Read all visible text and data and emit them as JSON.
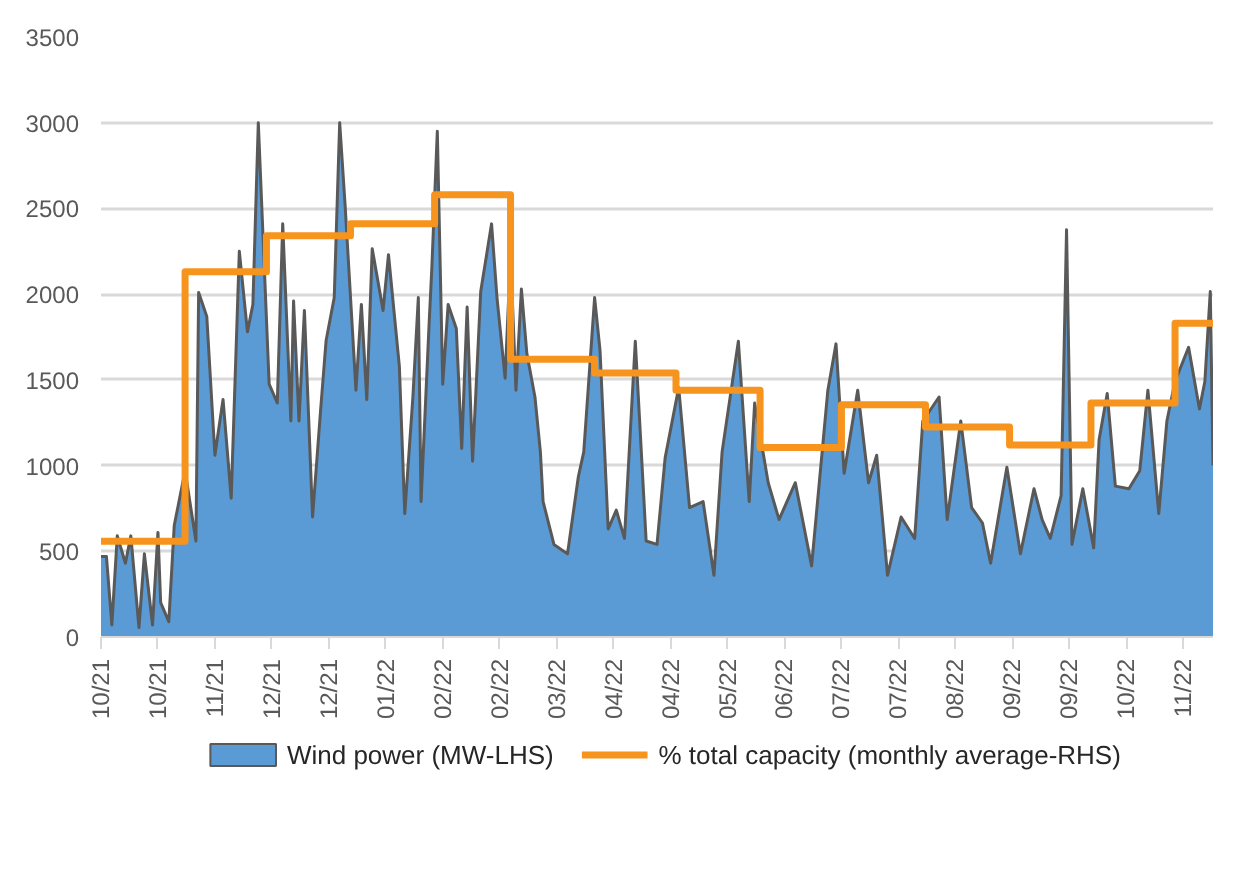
{
  "chart_data": {
    "type": "area",
    "ylim": [
      0,
      3500
    ],
    "yticks": [
      0,
      500,
      1000,
      1500,
      2000,
      2500,
      3000,
      3500
    ],
    "grid": "y",
    "legend": "bottom",
    "xlim": [
      "2021-10-01",
      "2022-11-15"
    ],
    "xticks": [
      {
        "value": "2021-10-01",
        "label": "10/21"
      },
      {
        "value": "2021-10-22",
        "label": "10/21"
      },
      {
        "value": "2021-11-12",
        "label": "11/21"
      },
      {
        "value": "2021-12-03",
        "label": "12/21"
      },
      {
        "value": "2021-12-24",
        "label": "12/21"
      },
      {
        "value": "2022-01-14",
        "label": "01/22"
      },
      {
        "value": "2022-02-04",
        "label": "02/22"
      },
      {
        "value": "2022-02-25",
        "label": "02/22"
      },
      {
        "value": "2022-03-18",
        "label": "03/22"
      },
      {
        "value": "2022-04-08",
        "label": "04/22"
      },
      {
        "value": "2022-04-29",
        "label": "04/22"
      },
      {
        "value": "2022-05-20",
        "label": "05/22"
      },
      {
        "value": "2022-06-10",
        "label": "06/22"
      },
      {
        "value": "2022-07-01",
        "label": "07/22"
      },
      {
        "value": "2022-07-22",
        "label": "07/22"
      },
      {
        "value": "2022-08-12",
        "label": "08/22"
      },
      {
        "value": "2022-09-02",
        "label": "09/22"
      },
      {
        "value": "2022-09-23",
        "label": "09/22"
      },
      {
        "value": "2022-10-14",
        "label": "10/22"
      },
      {
        "value": "2022-11-04",
        "label": "11/22"
      }
    ],
    "series": [
      {
        "name": "Wind power (MW-LHS)",
        "color": "#5b9bd5",
        "x": [
          "2021-10-01",
          "2021-10-03",
          "2021-10-05",
          "2021-10-07",
          "2021-10-10",
          "2021-10-12",
          "2021-10-15",
          "2021-10-17",
          "2021-10-20",
          "2021-10-22",
          "2021-10-23",
          "2021-10-26",
          "2021-10-28",
          "2021-11-01",
          "2021-11-05",
          "2021-11-06",
          "2021-11-09",
          "2021-11-12",
          "2021-11-15",
          "2021-11-18",
          "2021-11-21",
          "2021-11-24",
          "2021-11-26",
          "2021-11-28",
          "2021-12-02",
          "2021-12-05",
          "2021-12-07",
          "2021-12-10",
          "2021-12-11",
          "2021-12-13",
          "2021-12-15",
          "2021-12-18",
          "2021-12-21",
          "2021-12-23",
          "2021-12-26",
          "2021-12-28",
          "2021-12-30",
          "2022-01-03",
          "2022-01-05",
          "2022-01-07",
          "2022-01-09",
          "2022-01-13",
          "2022-01-15",
          "2022-01-19",
          "2022-01-21",
          "2022-01-24",
          "2022-01-26",
          "2022-01-27",
          "2022-01-30",
          "2022-01-31",
          "2022-02-02",
          "2022-02-04",
          "2022-02-06",
          "2022-02-09",
          "2022-02-11",
          "2022-02-13",
          "2022-02-15",
          "2022-02-18",
          "2022-02-22",
          "2022-02-24",
          "2022-02-27",
          "2022-03-01",
          "2022-03-03",
          "2022-03-05",
          "2022-03-07",
          "2022-03-10",
          "2022-03-12",
          "2022-03-13",
          "2022-03-17",
          "2022-03-22",
          "2022-03-26",
          "2022-03-28",
          "2022-04-01",
          "2022-04-03",
          "2022-04-06",
          "2022-04-09",
          "2022-04-12",
          "2022-04-16",
          "2022-04-20",
          "2022-04-24",
          "2022-04-27",
          "2022-05-02",
          "2022-05-06",
          "2022-05-11",
          "2022-05-15",
          "2022-05-18",
          "2022-05-24",
          "2022-05-28",
          "2022-05-30",
          "2022-06-04",
          "2022-06-08",
          "2022-06-14",
          "2022-06-20",
          "2022-06-26",
          "2022-06-29",
          "2022-07-02",
          "2022-07-07",
          "2022-07-11",
          "2022-07-14",
          "2022-07-18",
          "2022-07-23",
          "2022-07-28",
          "2022-07-31",
          "2022-08-06",
          "2022-08-09",
          "2022-08-14",
          "2022-08-18",
          "2022-08-22",
          "2022-08-25",
          "2022-08-31",
          "2022-09-05",
          "2022-09-10",
          "2022-09-13",
          "2022-09-16",
          "2022-09-20",
          "2022-09-22",
          "2022-09-24",
          "2022-09-28",
          "2022-10-02",
          "2022-10-04",
          "2022-10-07",
          "2022-10-10",
          "2022-10-15",
          "2022-10-19",
          "2022-10-22",
          "2022-10-26",
          "2022-10-29",
          "2022-11-01",
          "2022-11-06",
          "2022-11-10",
          "2022-11-12",
          "2022-11-14",
          "2022-11-15"
        ],
        "values": [
          470,
          470,
          70,
          590,
          430,
          590,
          55,
          485,
          70,
          610,
          200,
          90,
          650,
          970,
          560,
          2010,
          1870,
          1060,
          1385,
          810,
          2250,
          1780,
          1940,
          3000,
          1475,
          1365,
          2410,
          1260,
          1960,
          1260,
          1905,
          700,
          1330,
          1730,
          1980,
          3000,
          2520,
          1440,
          1940,
          1385,
          2265,
          1905,
          2230,
          1580,
          720,
          1400,
          1980,
          790,
          1835,
          2160,
          2950,
          1475,
          1940,
          1800,
          1100,
          1925,
          1025,
          2015,
          2410,
          1980,
          1510,
          2230,
          1440,
          2030,
          1655,
          1400,
          1080,
          790,
          540,
          485,
          935,
          1080,
          1980,
          1670,
          630,
          740,
          575,
          1725,
          560,
          540,
          1045,
          1455,
          755,
          790,
          360,
          1080,
          1725,
          790,
          1365,
          900,
          685,
          900,
          415,
          1440,
          1710,
          955,
          1440,
          900,
          1060,
          360,
          700,
          575,
          1260,
          1400,
          685,
          1260,
          755,
          665,
          430,
          990,
          485,
          865,
          685,
          575,
          825,
          2375,
          540,
          865,
          520,
          1150,
          1420,
          880,
          865,
          970,
          1440,
          720,
          1260,
          1490,
          1690,
          1330,
          1490,
          2015,
          1000
        ]
      },
      {
        "name": "% total capacity (monthly average-RHS)",
        "type": "step",
        "color": "#f7941d",
        "x": [
          "2021-10-01",
          "2021-11-01",
          "2021-12-01",
          "2022-01-01",
          "2022-02-01",
          "2022-03-01",
          "2022-04-01",
          "2022-05-01",
          "2022-06-01",
          "2022-07-01",
          "2022-08-01",
          "2022-09-01",
          "2022-10-01",
          "2022-11-01",
          "2022-11-15"
        ],
        "values": [
          558,
          2130,
          2340,
          2410,
          2580,
          1620,
          1540,
          1440,
          1105,
          1355,
          1225,
          1120,
          1365,
          1830,
          1830
        ]
      }
    ]
  }
}
